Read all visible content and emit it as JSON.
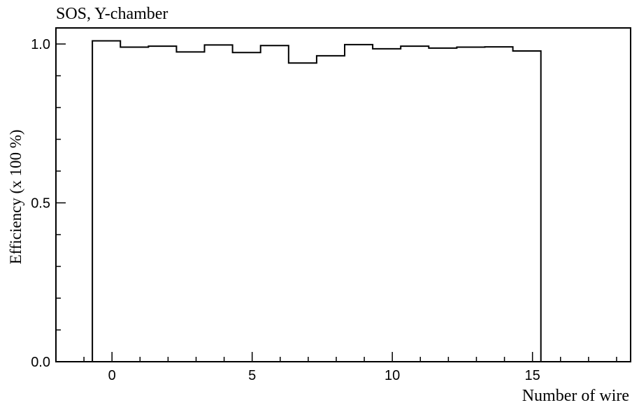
{
  "chart_data": {
    "type": "histogram-step",
    "title": "SOS, Y-chamber",
    "xlabel": "Number of wire",
    "ylabel": "Efficiency (x 100 %)",
    "xlim": [
      -2,
      18.5
    ],
    "ylim": [
      0,
      1.05
    ],
    "x_ticks": [
      0,
      5,
      10,
      15
    ],
    "x_tick_labels": [
      "0",
      "5",
      "10",
      "15"
    ],
    "y_ticks": [
      0,
      0.5,
      1
    ],
    "y_tick_labels": [
      "0.0",
      "0.5",
      "1.0"
    ],
    "bin_width": 1,
    "x": [
      -0.7,
      0.3,
      1.3,
      2.3,
      3.3,
      4.3,
      5.3,
      6.3,
      7.3,
      8.3,
      9.3,
      10.3,
      11.3,
      12.3,
      13.3,
      14.3,
      15.3,
      16.3,
      17.3
    ],
    "values": [
      1.01,
      0.99,
      0.993,
      0.975,
      0.997,
      0.973,
      0.995,
      0.94,
      0.963,
      0.998,
      0.985,
      0.993,
      0.987,
      0.99,
      0.991,
      0.978,
      0.0,
      0.0,
      0.0
    ],
    "grid": false,
    "colors": {
      "line": "#000000",
      "axes": "#000000",
      "background": "#ffffff"
    }
  }
}
